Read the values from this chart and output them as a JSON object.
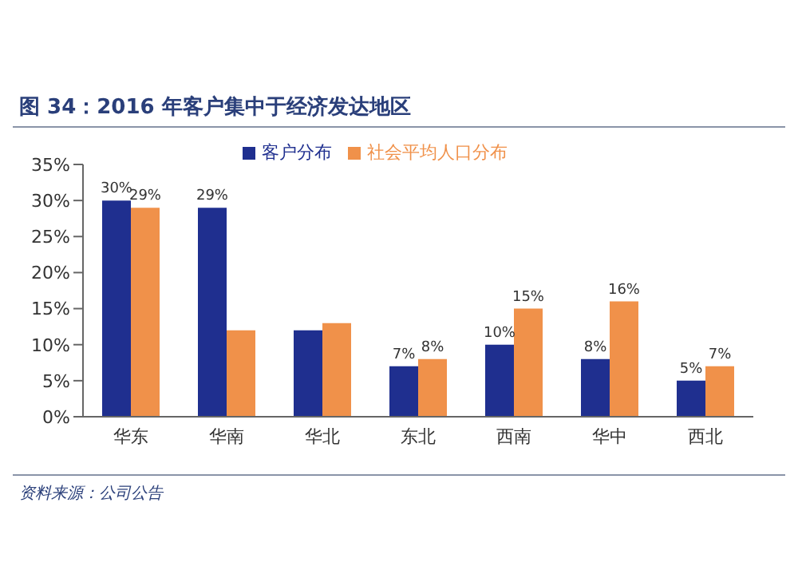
{
  "chart_data": {
    "type": "bar",
    "title": "图 34：2016 年客户集中于经济发达地区",
    "categories": [
      "华东",
      "华南",
      "华北",
      "东北",
      "西南",
      "华中",
      "西北"
    ],
    "series": [
      {
        "name": "客户分布",
        "color": "#1f2f8f",
        "values": [
          30,
          29,
          12,
          7,
          10,
          8,
          5
        ],
        "value_labels": [
          "30%",
          "29%",
          null,
          "7%",
          "10%",
          "8%",
          "5%"
        ]
      },
      {
        "name": "社会平均人口分布",
        "color": "#f0914a",
        "values": [
          29,
          12,
          13,
          8,
          15,
          16,
          7
        ],
        "value_labels": [
          "29%",
          null,
          null,
          "8%",
          "15%",
          "16%",
          "7%"
        ]
      }
    ],
    "ylim": [
      0,
      35
    ],
    "yticks": [
      {
        "value": 0,
        "label": "0%"
      },
      {
        "value": 5,
        "label": "5%"
      },
      {
        "value": 10,
        "label": "10%"
      },
      {
        "value": 15,
        "label": "15%"
      },
      {
        "value": 20,
        "label": "20%"
      },
      {
        "value": 25,
        "label": "25%"
      },
      {
        "value": 30,
        "label": "30%"
      },
      {
        "value": 35,
        "label": "35%"
      }
    ],
    "grid": false,
    "legend": "top",
    "annotations": [
      "资料来源：公司公告"
    ]
  }
}
